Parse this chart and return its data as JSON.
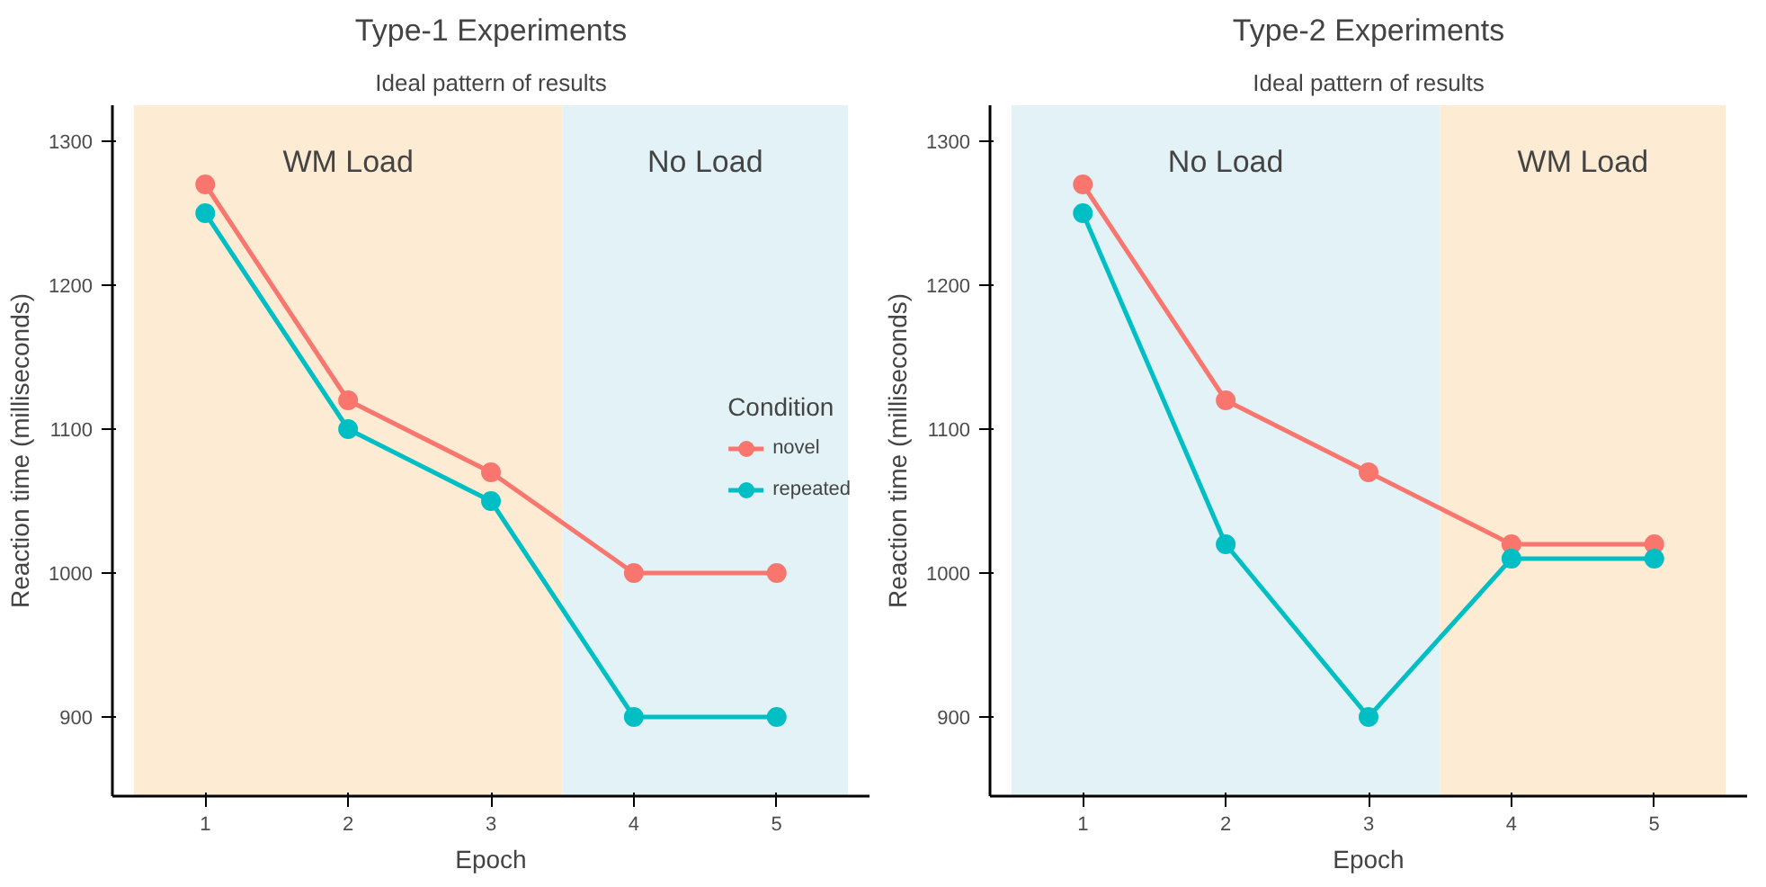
{
  "chart_data": [
    {
      "type": "line",
      "title": "Type-1 Experiments",
      "subtitle": "Ideal pattern of results",
      "xlabel": "Epoch",
      "ylabel": "Reaction time (milliseconds)",
      "legend_title": "Condition",
      "x": [
        1,
        2,
        3,
        4,
        5
      ],
      "series": [
        {
          "name": "novel",
          "color": "#f8766d",
          "values": [
            1270,
            1120,
            1070,
            1000,
            1000
          ]
        },
        {
          "name": "repeated",
          "color": "#00bfc4",
          "values": [
            1250,
            1100,
            1050,
            900,
            900
          ]
        }
      ],
      "xlim": [
        0.35,
        5.65
      ],
      "ylim": [
        845,
        1325
      ],
      "xticks": [
        1,
        2,
        3,
        4,
        5
      ],
      "yticks": [
        900,
        1000,
        1100,
        1200,
        1300
      ],
      "bands": [
        {
          "axis": "x",
          "from": 0.5,
          "to": 3.5,
          "label": "WM Load",
          "color": "#fdebd3"
        },
        {
          "axis": "x",
          "from": 3.5,
          "to": 5.5,
          "label": "No Load",
          "color": "#e3f2f6"
        }
      ],
      "grid": false,
      "legend": "right",
      "marker": "circle",
      "line_style": "solid"
    },
    {
      "type": "line",
      "title": "Type-2 Experiments",
      "subtitle": "Ideal pattern of results",
      "xlabel": "Epoch",
      "ylabel": "Reaction time (milliseconds)",
      "x": [
        1,
        2,
        3,
        4,
        5
      ],
      "series": [
        {
          "color": "#f8766d",
          "values": [
            1270,
            1120,
            1070,
            1020,
            1020
          ]
        },
        {
          "color": "#00bfc4",
          "values": [
            1250,
            1020,
            900,
            1010,
            1010
          ]
        }
      ],
      "xlim": [
        0.35,
        5.65
      ],
      "ylim": [
        845,
        1325
      ],
      "xticks": [
        1,
        2,
        3,
        4,
        5
      ],
      "yticks": [
        900,
        1000,
        1100,
        1200,
        1300
      ],
      "bands": [
        {
          "axis": "x",
          "from": 0.5,
          "to": 3.5,
          "label": "No Load",
          "color": "#e3f2f6"
        },
        {
          "axis": "x",
          "from": 3.5,
          "to": 5.5,
          "label": "WM Load",
          "color": "#fdebd3"
        }
      ],
      "grid": false,
      "legend": false,
      "marker": "circle",
      "line_style": "solid"
    }
  ]
}
